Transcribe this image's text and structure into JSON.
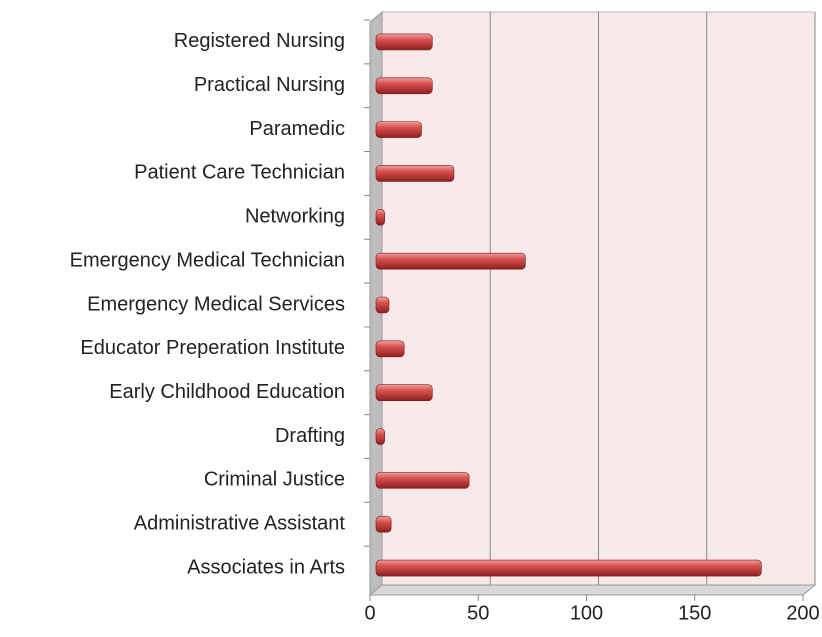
{
  "chart_data": {
    "type": "bar",
    "orientation": "horizontal",
    "categories": [
      "Registered Nursing",
      "Practical Nursing",
      "Paramedic",
      "Patient Care Technician",
      "Networking",
      "Emergency Medical Technician",
      "Emergency  Medical Services",
      "Educator Preperation Institute",
      "Early Childhood Education",
      "Drafting",
      "Criminal Justice",
      "Administrative Assistant",
      "Associates in Arts"
    ],
    "values": [
      26,
      26,
      21,
      36,
      4,
      69,
      6,
      13,
      26,
      4,
      43,
      7,
      178
    ],
    "color": "#c0393b",
    "xlim": [
      0,
      200
    ],
    "xticks": [
      0,
      50,
      100,
      150,
      200
    ],
    "grid": true
  }
}
